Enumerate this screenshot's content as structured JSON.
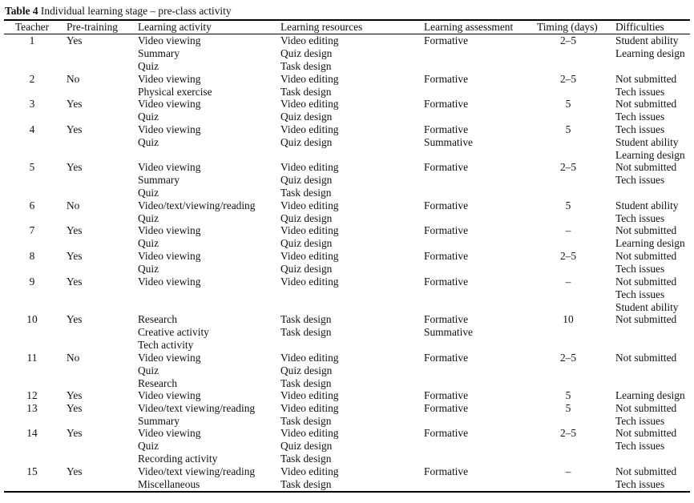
{
  "table": {
    "label": "Table 4",
    "caption": "Individual learning stage – pre-class activity",
    "headers": {
      "teacher": "Teacher",
      "pretraining": "Pre-training",
      "activity": "Learning activity",
      "resources": "Learning resources",
      "assessment": "Learning assessment",
      "timing": "Timing (days)",
      "difficulties": "Difficulties"
    },
    "rows": [
      {
        "teacher": "1",
        "pretraining": "Yes",
        "activity": [
          "Video viewing",
          "Summary",
          "Quiz"
        ],
        "resources": [
          "Video editing",
          "Quiz design",
          "Task design"
        ],
        "assessment": [
          "Formative"
        ],
        "timing": "2–5",
        "difficulties": [
          "Student ability",
          "Learning design"
        ]
      },
      {
        "teacher": "2",
        "pretraining": "No",
        "activity": [
          "Video viewing",
          "Physical exercise"
        ],
        "resources": [
          "Video editing",
          "Task design"
        ],
        "assessment": [
          "Formative"
        ],
        "timing": "2–5",
        "difficulties": [
          "Not submitted",
          "Tech issues"
        ]
      },
      {
        "teacher": "3",
        "pretraining": "Yes",
        "activity": [
          "Video viewing",
          "Quiz"
        ],
        "resources": [
          "Video editing",
          "Quiz design"
        ],
        "assessment": [
          "Formative"
        ],
        "timing": "5",
        "difficulties": [
          "Not submitted",
          "Tech issues"
        ]
      },
      {
        "teacher": "4",
        "pretraining": "Yes",
        "activity": [
          "Video viewing",
          "Quiz"
        ],
        "resources": [
          "Video editing",
          "Quiz design"
        ],
        "assessment": [
          "Formative",
          "Summative"
        ],
        "timing": "5",
        "difficulties": [
          "Tech issues",
          "Student ability",
          "Learning design"
        ]
      },
      {
        "teacher": "5",
        "pretraining": "Yes",
        "activity": [
          "Video viewing",
          "Summary",
          "Quiz"
        ],
        "resources": [
          "Video editing",
          "Quiz design",
          "Task design"
        ],
        "assessment": [
          "Formative"
        ],
        "timing": "2–5",
        "difficulties": [
          "Not submitted",
          "Tech issues"
        ]
      },
      {
        "teacher": "6",
        "pretraining": "No",
        "activity": [
          "Video/text/viewing/reading",
          "Quiz"
        ],
        "resources": [
          "Video editing",
          "Quiz design"
        ],
        "assessment": [
          "Formative"
        ],
        "timing": "5",
        "difficulties": [
          "Student ability",
          "Tech issues"
        ]
      },
      {
        "teacher": "7",
        "pretraining": "Yes",
        "activity": [
          "Video viewing",
          "Quiz"
        ],
        "resources": [
          "Video editing",
          "Quiz design"
        ],
        "assessment": [
          "Formative"
        ],
        "timing": "–",
        "difficulties": [
          "Not submitted",
          "Learning design"
        ]
      },
      {
        "teacher": "8",
        "pretraining": "Yes",
        "activity": [
          "Video viewing",
          "Quiz"
        ],
        "resources": [
          "Video editing",
          "Quiz design"
        ],
        "assessment": [
          "Formative"
        ],
        "timing": "2–5",
        "difficulties": [
          "Not submitted",
          "Tech issues"
        ]
      },
      {
        "teacher": "9",
        "pretraining": "Yes",
        "activity": [
          "Video viewing"
        ],
        "resources": [
          "Video editing"
        ],
        "assessment": [
          "Formative"
        ],
        "timing": "–",
        "difficulties": [
          "Not submitted",
          "Tech issues",
          "Student ability"
        ]
      },
      {
        "teacher": "10",
        "pretraining": "Yes",
        "activity": [
          "Research",
          "Creative activity",
          "Tech activity"
        ],
        "resources": [
          "Task design",
          "Task design"
        ],
        "assessment": [
          "Formative",
          "Summative"
        ],
        "timing": "10",
        "difficulties": [
          "Not submitted"
        ]
      },
      {
        "teacher": "11",
        "pretraining": "No",
        "activity": [
          "Video viewing",
          "Quiz",
          "Research"
        ],
        "resources": [
          "Video editing",
          "Quiz design",
          "Task design"
        ],
        "assessment": [
          "Formative"
        ],
        "timing": "2–5",
        "difficulties": [
          "Not submitted"
        ]
      },
      {
        "teacher": "12",
        "pretraining": "Yes",
        "activity": [
          "Video viewing"
        ],
        "resources": [
          "Video editing"
        ],
        "assessment": [
          "Formative"
        ],
        "timing": "5",
        "difficulties": [
          "Learning design"
        ]
      },
      {
        "teacher": "13",
        "pretraining": "Yes",
        "activity": [
          "Video/text viewing/reading",
          "Summary"
        ],
        "resources": [
          "Video editing",
          "Task design"
        ],
        "assessment": [
          "Formative"
        ],
        "timing": "5",
        "difficulties": [
          "Not submitted",
          "Tech issues"
        ]
      },
      {
        "teacher": "14",
        "pretraining": "Yes",
        "activity": [
          "Video viewing",
          "Quiz",
          "Recording activity"
        ],
        "resources": [
          "Video editing",
          "Quiz design",
          "Task design"
        ],
        "assessment": [
          "Formative"
        ],
        "timing": "2–5",
        "difficulties": [
          "Not submitted",
          "Tech issues"
        ]
      },
      {
        "teacher": "15",
        "pretraining": "Yes",
        "activity": [
          "Video/text viewing/reading",
          "Miscellaneous"
        ],
        "resources": [
          "Video editing",
          "Task design"
        ],
        "assessment": [
          "Formative"
        ],
        "timing": "–",
        "difficulties": [
          "Not submitted",
          "Tech issues"
        ]
      }
    ]
  }
}
